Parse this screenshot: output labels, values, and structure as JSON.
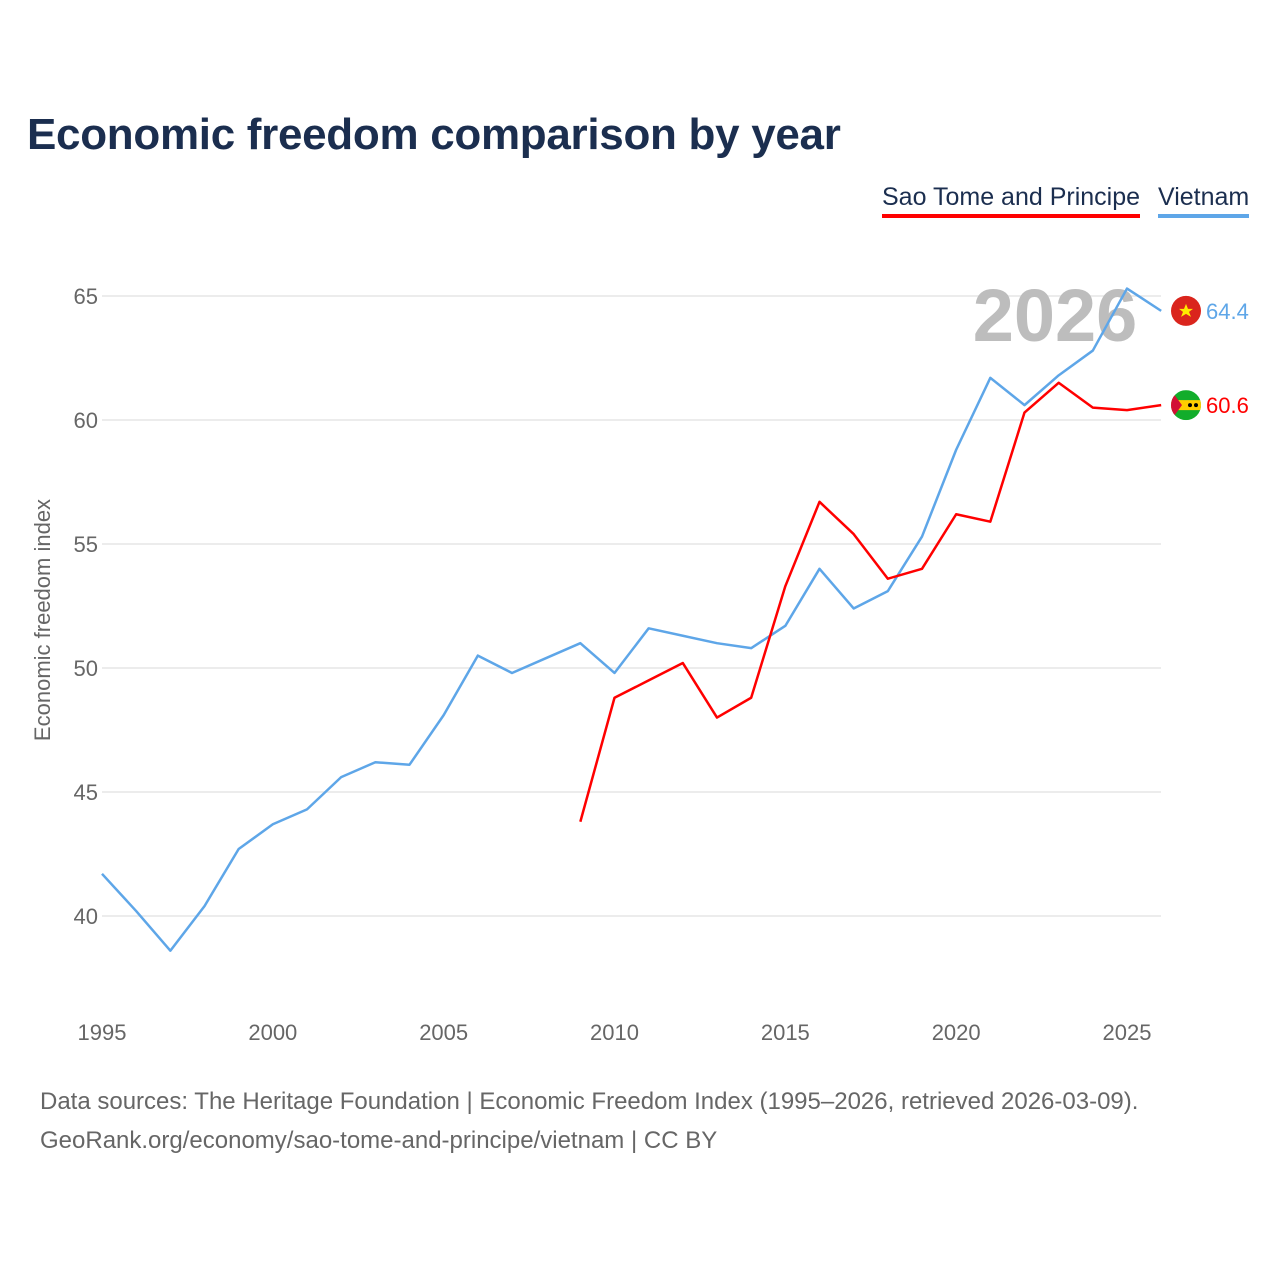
{
  "chart_data": {
    "type": "line",
    "title": "Economic freedom comparison by year",
    "xlabel": "",
    "ylabel": "Economic freedom index",
    "xlim": [
      1995,
      2026
    ],
    "ylim": [
      37,
      67
    ],
    "yticks": [
      40,
      45,
      50,
      55,
      60,
      65
    ],
    "xticks": [
      1995,
      2000,
      2005,
      2010,
      2015,
      2020,
      2025
    ],
    "grid": true,
    "legend_position": "top-right",
    "year_watermark": "2026",
    "series": [
      {
        "name": "Sao Tome and Principe",
        "color": "#ff0000",
        "end_label": "60.6",
        "flag": "sao-tome-and-principe-flag",
        "x": [
          2009,
          2010,
          2011,
          2012,
          2013,
          2014,
          2015,
          2016,
          2017,
          2018,
          2019,
          2020,
          2021,
          2022,
          2023,
          2024,
          2025,
          2026
        ],
        "values": [
          43.8,
          48.8,
          49.5,
          50.2,
          48.0,
          48.8,
          53.3,
          56.7,
          55.4,
          53.6,
          54.0,
          56.2,
          55.9,
          60.3,
          61.5,
          60.5,
          60.4,
          60.6
        ]
      },
      {
        "name": "Vietnam",
        "color": "#5ea6e8",
        "end_label": "64.4",
        "flag": "vietnam-flag",
        "x": [
          1995,
          1996,
          1997,
          1998,
          1999,
          2000,
          2001,
          2002,
          2003,
          2004,
          2005,
          2006,
          2007,
          2008,
          2009,
          2010,
          2011,
          2012,
          2013,
          2014,
          2015,
          2016,
          2017,
          2018,
          2019,
          2020,
          2021,
          2022,
          2023,
          2024,
          2025,
          2026
        ],
        "values": [
          41.7,
          40.2,
          38.6,
          40.4,
          42.7,
          43.7,
          44.3,
          45.6,
          46.2,
          46.1,
          48.1,
          50.5,
          49.8,
          50.4,
          51.0,
          49.8,
          51.6,
          51.3,
          51.0,
          50.8,
          51.7,
          54.0,
          52.4,
          53.1,
          55.3,
          58.8,
          61.7,
          60.6,
          61.8,
          62.8,
          65.3,
          64.4
        ]
      }
    ]
  },
  "footer": {
    "line1": "Data sources: The Heritage Foundation | Economic Freedom Index (1995–2026, retrieved 2026-03-09).",
    "line2": "GeoRank.org/economy/sao-tome-and-principe/vietnam | CC BY"
  }
}
